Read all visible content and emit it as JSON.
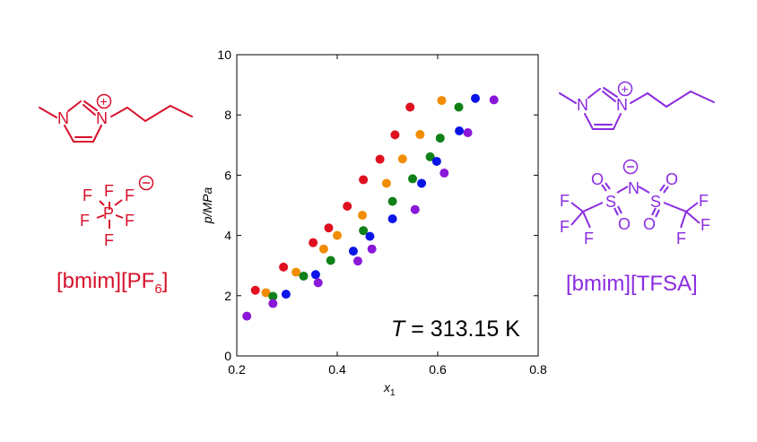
{
  "colors": {
    "bmim_pf6": "#d8102b",
    "bmim_tfsa": "#8b2be2",
    "red": "#e0101f",
    "orange": "#f28c00",
    "green": "#108018",
    "blue": "#0a14e8",
    "purple": "#8a18d8"
  },
  "molecules": {
    "left": {
      "label_main": "[bmim][PF",
      "label_sub": "6",
      "label_end": "]",
      "atoms": {
        "N1": "N",
        "N2": "N",
        "F": "F",
        "P": "P",
        "plus": "+",
        "minus": "−"
      }
    },
    "right": {
      "label": "[bmim][TFSA]",
      "atoms": {
        "N": "N",
        "S": "S",
        "O": "O",
        "F": "F",
        "plus": "+",
        "minus": "−"
      }
    }
  },
  "chart_data": {
    "type": "scatter",
    "title": "",
    "xlabel": "x",
    "xlabel_sub": "1",
    "ylabel": "p/MPa",
    "xlim": [
      0.2,
      0.8
    ],
    "ylim": [
      0,
      10
    ],
    "xticks": [
      "0.2",
      "0.4",
      "0.6",
      "0.8"
    ],
    "xtick_values": [
      0.2,
      0.4,
      0.6,
      0.8
    ],
    "yticks": [
      "0",
      "2",
      "4",
      "6",
      "8",
      "10"
    ],
    "ytick_values": [
      0,
      2,
      4,
      6,
      8,
      10
    ],
    "grid": false,
    "annotation": {
      "italic": "T",
      "rest": " = 313.15 K"
    },
    "series": [
      {
        "color": "#e0101f",
        "points": [
          [
            0.237,
            2.18
          ],
          [
            0.293,
            2.95
          ],
          [
            0.352,
            3.76
          ],
          [
            0.383,
            4.25
          ],
          [
            0.42,
            4.97
          ],
          [
            0.452,
            5.85
          ],
          [
            0.485,
            6.53
          ],
          [
            0.515,
            7.34
          ],
          [
            0.545,
            8.26
          ]
        ]
      },
      {
        "color": "#f28c00",
        "points": [
          [
            0.258,
            2.1
          ],
          [
            0.318,
            2.78
          ],
          [
            0.373,
            3.55
          ],
          [
            0.4,
            4.0
          ],
          [
            0.45,
            4.67
          ],
          [
            0.498,
            5.73
          ],
          [
            0.53,
            6.54
          ],
          [
            0.565,
            7.35
          ],
          [
            0.608,
            8.48
          ]
        ]
      },
      {
        "color": "#108018",
        "points": [
          [
            0.272,
            1.98
          ],
          [
            0.333,
            2.65
          ],
          [
            0.387,
            3.17
          ],
          [
            0.452,
            4.16
          ],
          [
            0.51,
            5.13
          ],
          [
            0.55,
            5.88
          ],
          [
            0.585,
            6.61
          ],
          [
            0.605,
            7.23
          ],
          [
            0.642,
            8.26
          ]
        ]
      },
      {
        "color": "#0a14e8",
        "points": [
          [
            0.298,
            2.05
          ],
          [
            0.357,
            2.7
          ],
          [
            0.432,
            3.48
          ],
          [
            0.465,
            3.97
          ],
          [
            0.51,
            4.55
          ],
          [
            0.568,
            5.73
          ],
          [
            0.598,
            6.46
          ],
          [
            0.643,
            7.47
          ],
          [
            0.675,
            8.55
          ]
        ]
      },
      {
        "color": "#8a18d8",
        "points": [
          [
            0.22,
            1.32
          ],
          [
            0.272,
            1.74
          ],
          [
            0.362,
            2.43
          ],
          [
            0.441,
            3.15
          ],
          [
            0.469,
            3.55
          ],
          [
            0.555,
            4.86
          ],
          [
            0.613,
            6.07
          ],
          [
            0.66,
            7.41
          ],
          [
            0.712,
            8.5
          ]
        ]
      }
    ]
  }
}
